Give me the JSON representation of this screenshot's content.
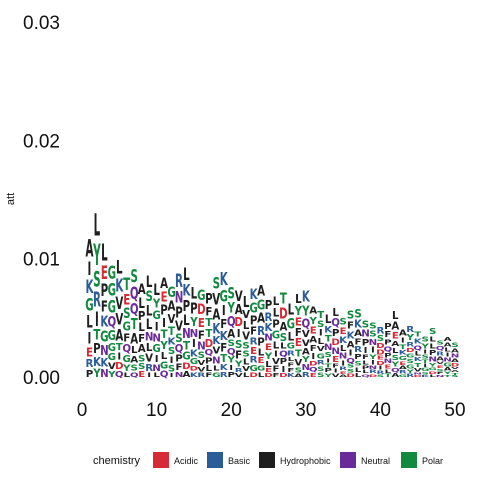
{
  "chart_data": {
    "type": "sequence-logo",
    "ylabel": "att",
    "xlim": [
      0,
      50
    ],
    "ylim": [
      0,
      0.03
    ],
    "xticks": [
      0,
      10,
      20,
      30,
      40,
      50
    ],
    "yticks": [
      0.0,
      0.01,
      0.02,
      0.03
    ],
    "ytick_labels": [
      "0.00",
      "0.01",
      "0.02",
      "0.03"
    ],
    "legend": {
      "title": "chemistry",
      "position": "bottom",
      "entries": [
        {
          "label": "Acidic",
          "color": "#D62A35"
        },
        {
          "label": "Basic",
          "color": "#2A5C9A"
        },
        {
          "label": "Hydrophobic",
          "color": "#1E1E1E"
        },
        {
          "label": "Neutral",
          "color": "#6A2A9A"
        },
        {
          "label": "Polar",
          "color": "#12893F"
        }
      ]
    },
    "positions": [
      1,
      2,
      3,
      4,
      5,
      6,
      7,
      8,
      9,
      10,
      11,
      12,
      13,
      14,
      15,
      16,
      17,
      18,
      19,
      20,
      21,
      22,
      23,
      24,
      25,
      26,
      27,
      28,
      29,
      30,
      31,
      32,
      33,
      34,
      35,
      36,
      37,
      38,
      39,
      40,
      41,
      42,
      43,
      44,
      45,
      46,
      47,
      48,
      49,
      50
    ],
    "column_heights": [
      0.0122,
      0.0145,
      0.0118,
      0.0098,
      0.0103,
      0.0088,
      0.0095,
      0.0082,
      0.009,
      0.0083,
      0.0087,
      0.008,
      0.0092,
      0.0096,
      0.008,
      0.0077,
      0.0074,
      0.0088,
      0.0093,
      0.008,
      0.0076,
      0.0072,
      0.0078,
      0.0081,
      0.0068,
      0.0071,
      0.0075,
      0.0066,
      0.0073,
      0.0076,
      0.0062,
      0.0058,
      0.0055,
      0.0061,
      0.0052,
      0.0058,
      0.006,
      0.005,
      0.0048,
      0.0044,
      0.0047,
      0.0058,
      0.0042,
      0.0045,
      0.004,
      0.0036,
      0.0043,
      0.0032,
      0.0035,
      0.003
    ],
    "top_residues": [
      "A",
      "L",
      "L",
      "G",
      "L",
      "T",
      "S",
      "A",
      "L",
      "L",
      "A",
      "G",
      "R",
      "L",
      "L",
      "G",
      "P",
      "S",
      "K",
      "S",
      "V",
      "L",
      "K",
      "A",
      "P",
      "L",
      "T",
      "L",
      "L",
      "K",
      "A",
      "T",
      "L",
      "L",
      "S",
      "S",
      "S",
      "S",
      "S",
      "R",
      "P",
      "L",
      "A",
      "R",
      "T",
      "S",
      "S",
      "S",
      "A",
      "S"
    ]
  }
}
